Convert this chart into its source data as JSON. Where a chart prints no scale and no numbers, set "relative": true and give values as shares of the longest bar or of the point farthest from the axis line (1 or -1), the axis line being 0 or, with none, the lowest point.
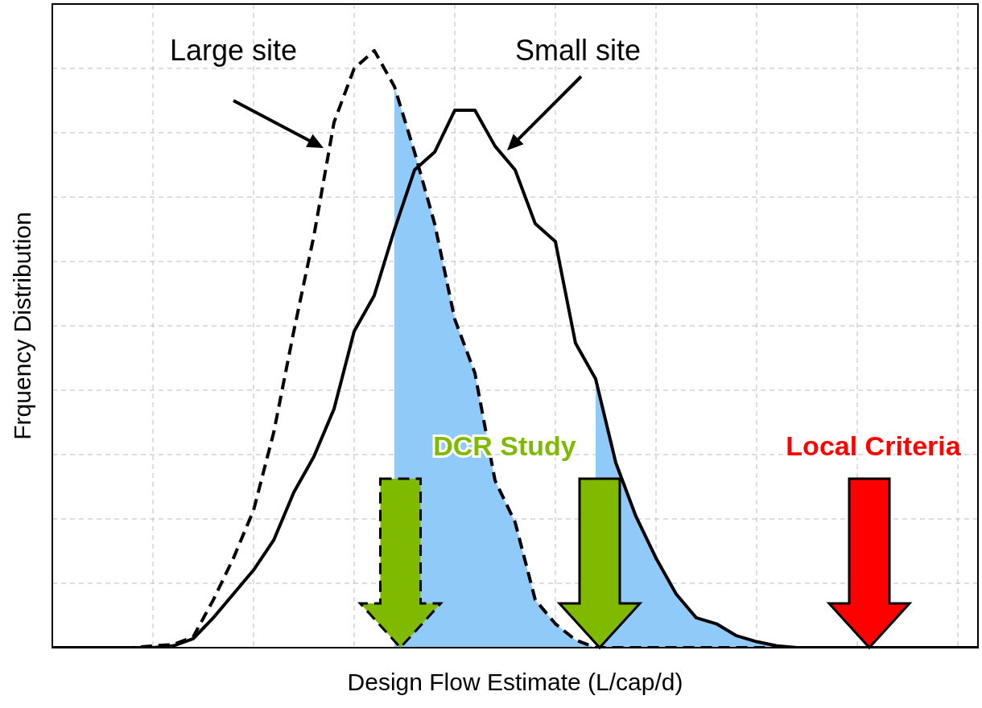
{
  "chart_data": {
    "type": "line",
    "xlabel": "Design Flow Estimate (L/cap/d)",
    "ylabel": "Frquency Distribution",
    "relative": true,
    "grid": true,
    "categories": [
      null,
      null,
      null,
      null,
      null,
      null,
      null,
      null,
      null,
      null,
      null,
      null,
      null,
      null,
      null,
      null,
      null,
      null,
      null,
      null,
      null,
      null,
      null,
      null,
      null,
      null,
      null,
      null,
      null,
      null,
      null,
      null,
      null,
      null,
      null,
      null,
      null,
      null,
      null,
      null,
      null,
      null,
      null,
      null,
      null,
      null,
      null
    ],
    "series": [
      {
        "type": "area",
        "color": "#90caf9",
        "values": [
          null,
          null,
          null,
          null,
          null,
          null,
          null,
          null,
          null,
          null,
          null,
          null,
          null,
          null,
          null,
          null,
          null,
          0.94,
          0.83,
          0.71,
          0.55,
          0.46,
          0.28,
          0.21,
          0.08,
          0.04,
          0.013,
          0,
          null,
          null,
          null,
          null,
          null,
          null,
          null,
          null,
          null,
          null,
          null,
          null,
          null,
          null,
          null,
          null,
          null,
          null,
          null
        ]
      },
      {
        "type": "area",
        "color": "#90caf9",
        "values": [
          null,
          null,
          null,
          null,
          null,
          null,
          null,
          null,
          null,
          null,
          null,
          null,
          null,
          null,
          null,
          null,
          null,
          null,
          null,
          null,
          null,
          null,
          null,
          null,
          null,
          null,
          null,
          0.45,
          0.31,
          0.22,
          0.15,
          0.09,
          0.05,
          0.04,
          0.02,
          0.01,
          0.003,
          0,
          null,
          null,
          null,
          null,
          null,
          null,
          null,
          null,
          null
        ]
      },
      {
        "name": "Large site",
        "color": "#000000",
        "line_style": "dashed",
        "values": [
          0,
          0,
          0,
          0,
          0,
          0.003,
          0.005,
          0.018,
          0.08,
          0.15,
          0.23,
          0.36,
          0.53,
          0.69,
          0.88,
          0.97,
          1,
          0.94,
          0.83,
          0.71,
          0.55,
          0.46,
          0.28,
          0.21,
          0.08,
          0.04,
          0.013,
          0,
          0,
          0,
          0,
          0,
          0,
          0,
          0,
          0,
          0,
          0,
          0,
          0,
          0,
          0,
          0,
          0,
          0,
          0,
          0
        ]
      },
      {
        "name": "Small site",
        "color": "#000000",
        "line_style": "solid",
        "values": [
          0,
          0,
          0,
          0,
          0,
          0,
          0.003,
          0.015,
          0.05,
          0.09,
          0.13,
          0.18,
          0.26,
          0.32,
          0.4,
          0.53,
          0.59,
          0.7,
          0.8,
          0.83,
          0.9,
          0.9,
          0.84,
          0.8,
          0.71,
          0.68,
          0.51,
          0.45,
          0.31,
          0.22,
          0.15,
          0.09,
          0.05,
          0.04,
          0.02,
          0.01,
          0.003,
          0,
          0,
          0,
          0,
          0,
          0,
          0,
          0,
          0,
          0
        ]
      }
    ],
    "annotations": [
      "DCR Study",
      "Local Criteria"
    ]
  }
}
